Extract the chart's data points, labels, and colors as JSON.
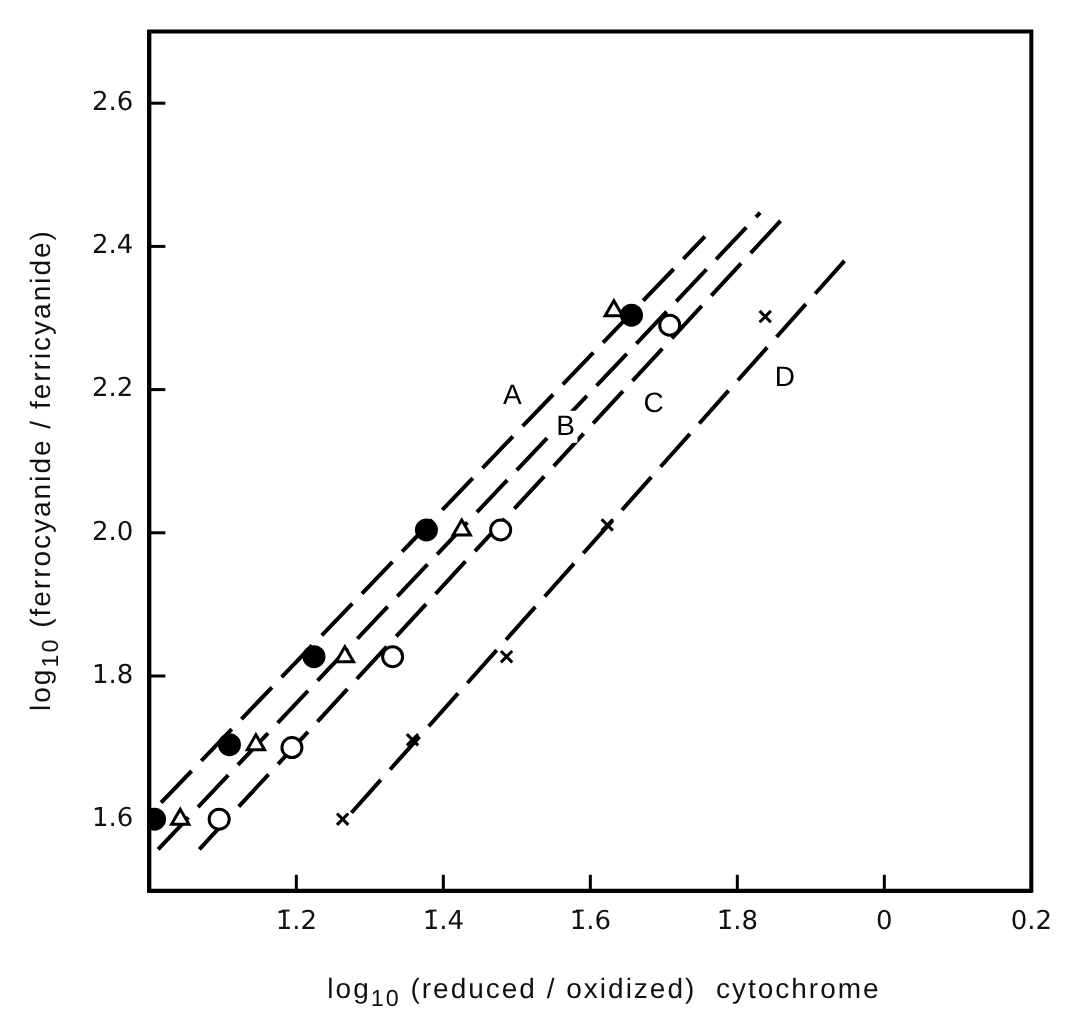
{
  "chart_data": {
    "type": "scatter",
    "xlabel": "log$_{10}$ (reduced / oxidized)  cytochrome",
    "ylabel": "log$_{10}$ (ferrocyanide / ferricyanide)",
    "xlim": [
      -1.0,
      0.2
    ],
    "xticks": [
      {
        "value": -0.8,
        "label": "1̄.2"
      },
      {
        "value": -0.6,
        "label": "1̄.4"
      },
      {
        "value": -0.4,
        "label": "1̄.6"
      },
      {
        "value": -0.2,
        "label": "1̄.8"
      },
      0,
      0.2
    ],
    "ylim": [
      1.5,
      2.7
    ],
    "yticks": [
      1.6,
      1.8,
      {
        "value": 2.0,
        "label": "2.0"
      },
      2.2,
      2.4,
      2.6
    ],
    "grid": false,
    "legend": false,
    "series": [
      {
        "marker": "circle",
        "color": "#000000",
        "x": [
          -0.993,
          -0.891,
          -0.776,
          -0.623,
          -0.344
        ],
        "values": [
          1.6,
          1.704,
          1.827,
          2.004,
          2.304
        ]
      },
      {
        "marker": "triangle",
        "color": "#ffffff",
        "x": [
          -0.958,
          -0.855,
          -0.734,
          -0.575,
          -0.368
        ],
        "values": [
          1.6,
          1.704,
          1.827,
          2.004,
          2.31
        ]
      },
      {
        "marker": "circle",
        "color": "#ffffff",
        "x": [
          -0.905,
          -0.806,
          -0.669,
          -0.522,
          -0.292
        ],
        "values": [
          1.6,
          1.7,
          1.827,
          2.004,
          2.29
        ]
      },
      {
        "marker": "cross",
        "color": "#000000",
        "x": [
          -0.737,
          -0.642,
          -0.514,
          -0.377,
          -0.162
        ],
        "values": [
          1.6,
          1.711,
          1.827,
          2.011,
          2.302
        ]
      },
      {
        "type": "line",
        "name": "A",
        "marker": "none",
        "line_style": "dashed",
        "color": "#000000",
        "x": [
          -0.984,
          -0.244
        ],
        "values": [
          1.623,
          2.414
        ]
      },
      {
        "type": "line",
        "name": "B",
        "marker": "none",
        "line_style": "dashed",
        "color": "#000000",
        "x": [
          -0.988,
          -0.169
        ],
        "values": [
          1.558,
          2.447
        ]
      },
      {
        "type": "line",
        "name": "C",
        "marker": "none",
        "line_style": "dashed",
        "color": "#000000",
        "x": [
          -0.932,
          -0.141
        ],
        "values": [
          1.558,
          2.436
        ]
      },
      {
        "type": "line",
        "name": "D",
        "marker": "none",
        "line_style": "dashed",
        "color": "#000000",
        "x": [
          -0.725,
          -0.054
        ],
        "values": [
          1.609,
          2.38
        ]
      }
    ]
  }
}
